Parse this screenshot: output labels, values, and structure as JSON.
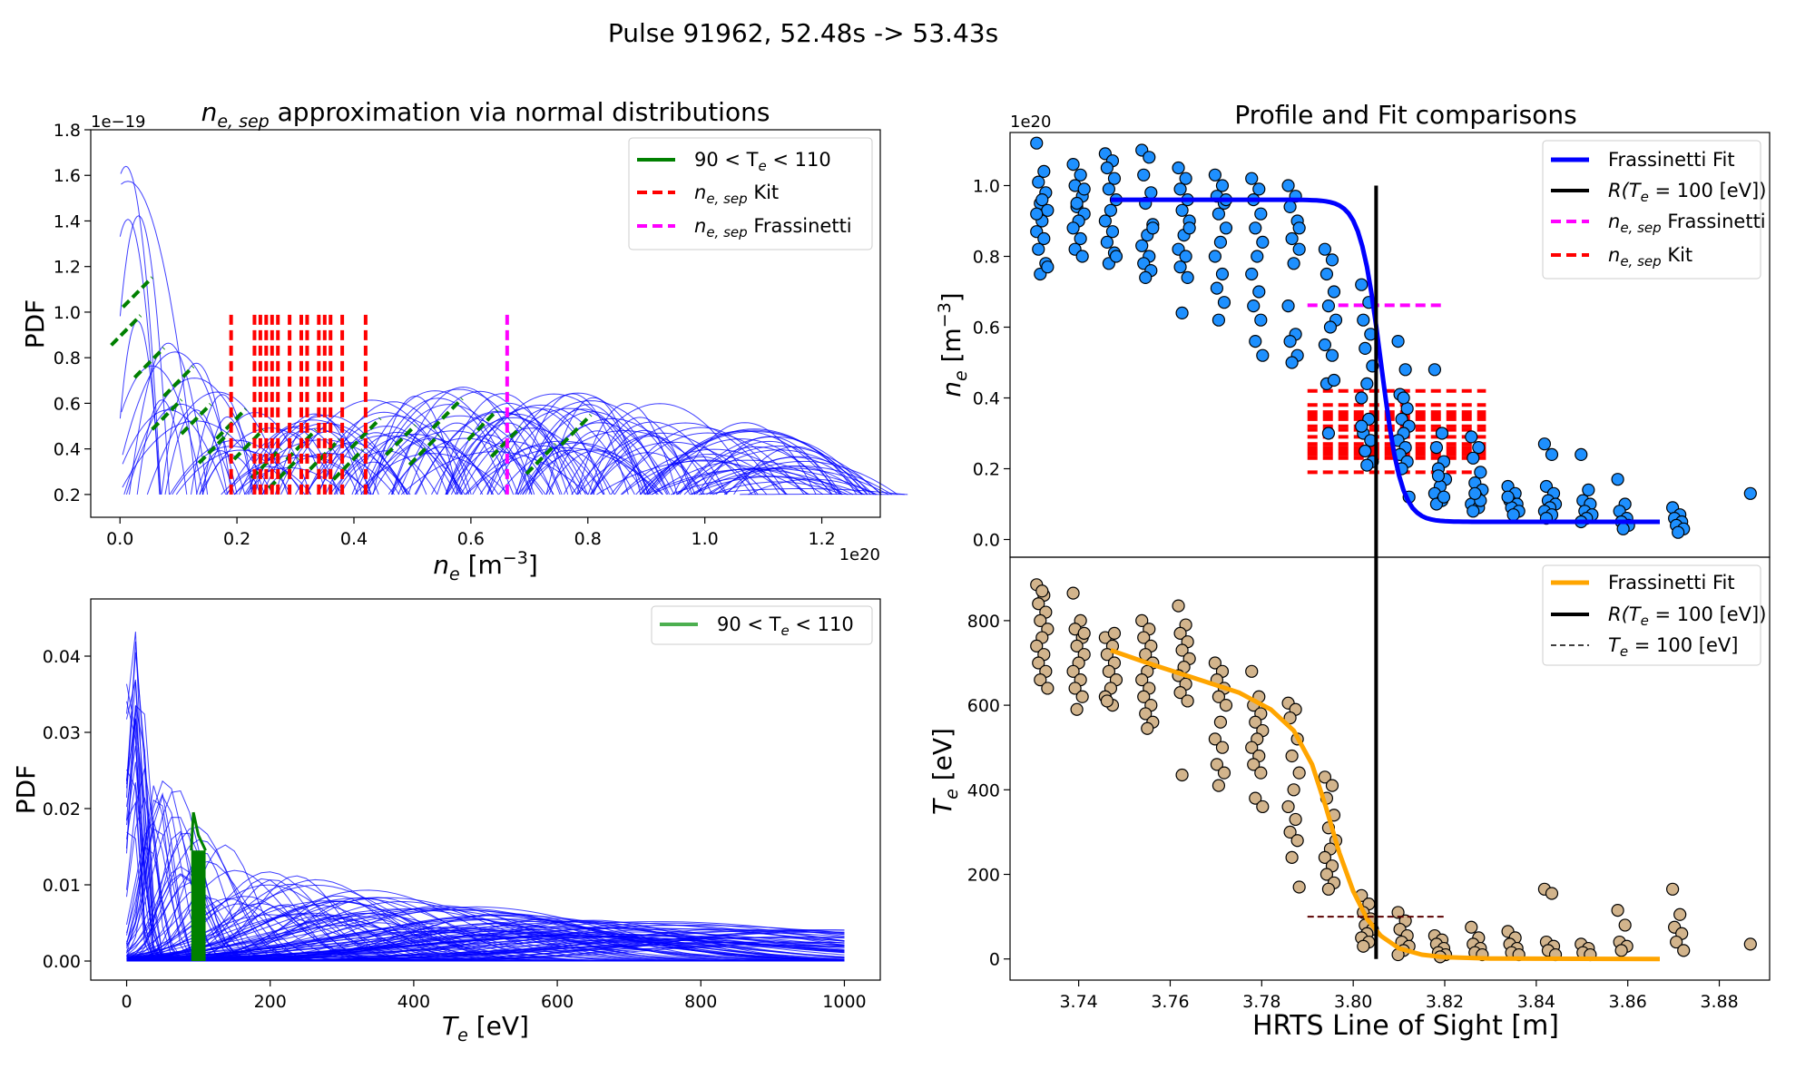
{
  "suptitle": "Pulse 91962, 52.48s -> 53.43s",
  "chart_data": [
    {
      "id": "ne_pdf",
      "type": "line",
      "title_prefix": "n",
      "title_sub": "e, sep",
      "title_suffix": " approximation via normal distributions",
      "xlabel_main": "n",
      "xlabel_sub": "e",
      "xlabel_unit": " [m",
      "xlabel_sup": "−3",
      "xlabel_close": "]",
      "ylabel": "PDF",
      "x_offset_text": "1e20",
      "y_offset_text": "1e−19",
      "xlim": [
        -0.05,
        1.3
      ],
      "ylim": [
        0.1,
        1.8
      ],
      "x_ticks": [
        0.0,
        0.2,
        0.4,
        0.6,
        0.8,
        1.0,
        1.2
      ],
      "x_tick_labels": [
        "0.0",
        "0.2",
        "0.4",
        "0.6",
        "0.8",
        "1.0",
        "1.2"
      ],
      "y_ticks": [
        0.2,
        0.4,
        0.6,
        0.8,
        1.0,
        1.2,
        1.4,
        1.6,
        1.8
      ],
      "y_tick_labels": [
        "0.2",
        "0.4",
        "0.6",
        "0.8",
        "1.0",
        "1.2",
        "1.4",
        "1.6",
        "1.8"
      ],
      "legend": [
        {
          "label": "90 < T",
          "sub": "e",
          "tail": " < 110",
          "color": "#008000",
          "style": "solid"
        },
        {
          "label": "n",
          "sub": "e, sep",
          "tail": " Kit",
          "color": "#ff0000",
          "style": "dashed"
        },
        {
          "label": "n",
          "sub": "e, sep",
          "tail": " Frassinetti",
          "color": "#ff00ff",
          "style": "dashed"
        }
      ],
      "curves_color": "#0000ff",
      "curve_count": 150,
      "curve_y_floor": 0.2,
      "curve_peak_envelope": [
        [
          0.015,
          1.7
        ],
        [
          0.03,
          1.45
        ],
        [
          0.06,
          1.05
        ],
        [
          0.1,
          0.9
        ],
        [
          0.15,
          0.7
        ],
        [
          0.25,
          0.55
        ],
        [
          0.4,
          0.6
        ],
        [
          0.6,
          0.72
        ],
        [
          0.7,
          0.68
        ],
        [
          0.8,
          0.65
        ],
        [
          0.9,
          0.62
        ],
        [
          1.0,
          0.58
        ],
        [
          1.1,
          0.5
        ],
        [
          1.22,
          0.32
        ]
      ],
      "green_segments_ne": [
        0.01,
        0.03,
        0.05,
        0.08,
        0.1,
        0.13,
        0.16,
        0.19,
        0.22,
        0.25,
        0.28,
        0.31,
        0.35,
        0.39,
        0.42,
        0.48,
        0.52,
        0.56,
        0.62,
        0.66,
        0.72,
        0.78
      ],
      "kit_vlines": [
        0.19,
        0.23,
        0.24,
        0.25,
        0.26,
        0.27,
        0.29,
        0.31,
        0.32,
        0.34,
        0.35,
        0.36,
        0.38,
        0.42
      ],
      "kit_range": [
        0.2,
        1.0
      ],
      "frassinetti_vline": 0.662,
      "frassinetti_range": [
        0.2,
        1.0
      ]
    },
    {
      "id": "te_pdf",
      "type": "line",
      "xlabel_main": "T",
      "xlabel_sub": "e",
      "xlabel_unit": " [eV]",
      "ylabel": "PDF",
      "xlim": [
        -50,
        1050
      ],
      "ylim": [
        -0.0025,
        0.0475
      ],
      "x_ticks": [
        0,
        200,
        400,
        600,
        800,
        1000
      ],
      "x_tick_labels": [
        "0",
        "200",
        "400",
        "600",
        "800",
        "1000"
      ],
      "y_ticks": [
        0.0,
        0.01,
        0.02,
        0.03,
        0.04
      ],
      "y_tick_labels": [
        "0.00",
        "0.01",
        "0.02",
        "0.03",
        "0.04"
      ],
      "legend": [
        {
          "label": "90 < T",
          "sub": "e",
          "tail": " < 110",
          "color": "#4caf50",
          "style": "solid"
        }
      ],
      "curves_color": "#0000ff",
      "curve_count": 150,
      "curve_peak_envelope": [
        [
          15,
          0.046
        ],
        [
          25,
          0.03
        ],
        [
          40,
          0.024
        ],
        [
          60,
          0.024
        ],
        [
          100,
          0.019
        ],
        [
          150,
          0.014
        ],
        [
          200,
          0.012
        ],
        [
          300,
          0.01
        ],
        [
          400,
          0.008
        ],
        [
          600,
          0.006
        ],
        [
          800,
          0.005
        ],
        [
          1000,
          0.004
        ]
      ],
      "green_band": [
        90,
        110
      ],
      "green_peak": 0.0195
    },
    {
      "id": "ne_profile",
      "type": "scatter",
      "title": "Profile and Fit comparisons",
      "ylabel_main": "n",
      "ylabel_sub": "e",
      "ylabel_unit": " [m",
      "ylabel_sup": "−3",
      "ylabel_close": "]",
      "y_offset_text": "1e20",
      "xlim": [
        3.725,
        3.891
      ],
      "ylim": [
        -0.05,
        1.15
      ],
      "y_ticks": [
        0.0,
        0.2,
        0.4,
        0.6,
        0.8,
        1.0
      ],
      "y_tick_labels": [
        "0.0",
        "0.2",
        "0.4",
        "0.6",
        "0.8",
        "1.0"
      ],
      "legend": [
        {
          "label": "Frassinetti Fit",
          "color": "#0000ff",
          "style": "thick"
        },
        {
          "label": "R(T",
          "sub": "e",
          "tail": " = 100 [eV])",
          "italic_head": true,
          "color": "#000000",
          "style": "solid"
        },
        {
          "label": "n",
          "sub": "e, sep",
          "tail": " Frassinetti",
          "color": "#ff00ff",
          "style": "dashed"
        },
        {
          "label": "n",
          "sub": "e, sep",
          "tail": " Kit",
          "color": "#ff0000",
          "style": "dashed"
        }
      ],
      "point_color": "#1e90ff",
      "fit_color": "#0000ff",
      "fit": {
        "x_start": 3.747,
        "x_end": 3.867,
        "ped": 0.96,
        "base": 0.05,
        "r0": 3.806,
        "w": 0.0045
      },
      "points_columns": [
        {
          "x": 3.732,
          "y": [
            1.12,
            1.04,
            1.01,
            0.98,
            0.95,
            0.93,
            0.9,
            0.87,
            0.85,
            0.82,
            0.78,
            0.75,
            0.77,
            0.96,
            0.92
          ]
        },
        {
          "x": 3.74,
          "y": [
            1.06,
            1.03,
            1.0,
            0.97,
            0.94,
            0.92,
            0.9,
            0.88,
            0.85,
            0.82,
            0.8,
            0.95,
            0.99
          ]
        },
        {
          "x": 3.747,
          "y": [
            1.09,
            1.07,
            1.05,
            1.02,
            0.99,
            0.96,
            0.93,
            0.9,
            0.87,
            0.84,
            0.81,
            0.78,
            0.8
          ]
        },
        {
          "x": 3.755,
          "y": [
            1.1,
            1.08,
            1.03,
            0.98,
            0.95,
            0.89,
            0.86,
            0.83,
            0.8,
            0.78,
            0.76,
            0.74,
            0.88
          ]
        },
        {
          "x": 3.763,
          "y": [
            1.05,
            1.02,
            0.99,
            0.96,
            0.93,
            0.9,
            0.86,
            0.82,
            0.8,
            0.77,
            0.74,
            0.64,
            0.88
          ]
        },
        {
          "x": 3.771,
          "y": [
            1.03,
            1.0,
            0.97,
            0.95,
            0.92,
            0.88,
            0.84,
            0.8,
            0.75,
            0.71,
            0.67,
            0.62,
            0.96
          ]
        },
        {
          "x": 3.779,
          "y": [
            1.02,
            0.99,
            0.96,
            0.92,
            0.88,
            0.84,
            0.8,
            0.75,
            0.7,
            0.66,
            0.62,
            0.56,
            0.52
          ]
        },
        {
          "x": 3.787,
          "y": [
            1.0,
            0.97,
            0.94,
            0.9,
            0.85,
            0.82,
            0.78,
            0.66,
            0.58,
            0.56,
            0.52,
            0.5,
            0.88
          ]
        },
        {
          "x": 3.795,
          "y": [
            0.82,
            0.79,
            0.75,
            0.7,
            0.66,
            0.62,
            0.6,
            0.55,
            0.52,
            0.44,
            0.45,
            0.3
          ]
        },
        {
          "x": 3.803,
          "y": [
            0.72,
            0.67,
            0.62,
            0.58,
            0.54,
            0.49,
            0.44,
            0.4,
            0.34,
            0.3,
            0.28,
            0.25,
            0.22,
            0.21,
            0.32
          ]
        },
        {
          "x": 3.811,
          "y": [
            0.56,
            0.48,
            0.41,
            0.37,
            0.34,
            0.32,
            0.3,
            0.28,
            0.26,
            0.24,
            0.22,
            0.2,
            0.12,
            0.4
          ]
        },
        {
          "x": 3.819,
          "y": [
            0.48,
            0.3,
            0.26,
            0.22,
            0.2,
            0.17,
            0.15,
            0.13,
            0.11,
            0.1,
            0.12,
            0.18
          ]
        },
        {
          "x": 3.827,
          "y": [
            0.29,
            0.26,
            0.23,
            0.19,
            0.16,
            0.14,
            0.12,
            0.1,
            0.09,
            0.08,
            0.11,
            0.13
          ]
        },
        {
          "x": 3.835,
          "y": [
            0.15,
            0.13,
            0.11,
            0.1,
            0.09,
            0.08,
            0.07,
            0.12
          ]
        },
        {
          "x": 3.843,
          "y": [
            0.27,
            0.24,
            0.15,
            0.13,
            0.11,
            0.1,
            0.09,
            0.08,
            0.07,
            0.06
          ]
        },
        {
          "x": 3.851,
          "y": [
            0.24,
            0.14,
            0.11,
            0.1,
            0.08,
            0.07,
            0.06,
            0.05
          ]
        },
        {
          "x": 3.859,
          "y": [
            0.17,
            0.1,
            0.08,
            0.06,
            0.05,
            0.04,
            0.03
          ]
        },
        {
          "x": 3.871,
          "y": [
            0.09,
            0.07,
            0.06,
            0.05,
            0.04,
            0.03,
            0.02
          ]
        },
        {
          "x": 3.888,
          "y": [
            0.13
          ]
        }
      ],
      "r_te100": 3.805,
      "r_te100_range": [
        0.0,
        1.0
      ],
      "ne_sep_frassinetti": 0.662,
      "ne_sep_frassinetti_xrange": [
        3.79,
        3.82
      ],
      "kit_hlines": [
        0.19,
        0.23,
        0.24,
        0.25,
        0.26,
        0.27,
        0.29,
        0.31,
        0.32,
        0.34,
        0.35,
        0.36,
        0.38,
        0.42
      ],
      "kit_xrange": [
        3.79,
        3.829
      ]
    },
    {
      "id": "te_profile",
      "type": "scatter",
      "xlabel": "HRTS Line of Sight [m]",
      "ylabel_main": "T",
      "ylabel_sub": "e",
      "ylabel_unit": " [eV]",
      "xlim": [
        3.725,
        3.891
      ],
      "ylim": [
        -50,
        950
      ],
      "x_ticks": [
        3.74,
        3.76,
        3.78,
        3.8,
        3.82,
        3.84,
        3.86,
        3.88
      ],
      "x_tick_labels": [
        "3.74",
        "3.76",
        "3.78",
        "3.80",
        "3.82",
        "3.84",
        "3.86",
        "3.88"
      ],
      "y_ticks": [
        0,
        200,
        400,
        600,
        800
      ],
      "y_tick_labels": [
        "0",
        "200",
        "400",
        "600",
        "800"
      ],
      "legend": [
        {
          "label": "Frassinetti Fit",
          "color": "#ffa500",
          "style": "thick"
        },
        {
          "label": "R(T",
          "sub": "e",
          "tail": " = 100 [eV])",
          "italic_head": true,
          "color": "#000000",
          "style": "solid"
        },
        {
          "label": "T",
          "sub": "e",
          "tail": " = 100 [eV]",
          "italic_head": true,
          "color": "#000000",
          "style": "thindash"
        }
      ],
      "point_color": "#d2b48c",
      "fit_color": "#ffa500",
      "fit_points": [
        [
          3.747,
          730
        ],
        [
          3.755,
          700
        ],
        [
          3.765,
          665
        ],
        [
          3.775,
          630
        ],
        [
          3.782,
          590
        ],
        [
          3.787,
          540
        ],
        [
          3.791,
          460
        ],
        [
          3.794,
          360
        ],
        [
          3.797,
          250
        ],
        [
          3.8,
          160
        ],
        [
          3.803,
          95
        ],
        [
          3.806,
          55
        ],
        [
          3.81,
          25
        ],
        [
          3.815,
          10
        ],
        [
          3.82,
          4
        ],
        [
          3.83,
          1
        ],
        [
          3.867,
          0
        ]
      ],
      "points_columns": [
        {
          "x": 3.732,
          "y": [
            885,
            860,
            840,
            820,
            800,
            780,
            760,
            740,
            720,
            700,
            680,
            660,
            640,
            870
          ]
        },
        {
          "x": 3.74,
          "y": [
            865,
            800,
            780,
            760,
            740,
            720,
            700,
            680,
            660,
            640,
            620,
            590,
            770
          ]
        },
        {
          "x": 3.747,
          "y": [
            760,
            740,
            720,
            700,
            680,
            660,
            640,
            620,
            600,
            610,
            770
          ]
        },
        {
          "x": 3.755,
          "y": [
            800,
            780,
            760,
            740,
            720,
            700,
            680,
            660,
            640,
            620,
            600,
            580,
            560,
            545
          ]
        },
        {
          "x": 3.763,
          "y": [
            835,
            790,
            770,
            750,
            730,
            710,
            690,
            670,
            650,
            630,
            610,
            435
          ]
        },
        {
          "x": 3.771,
          "y": [
            700,
            680,
            660,
            640,
            620,
            600,
            560,
            520,
            500,
            460,
            440,
            410
          ]
        },
        {
          "x": 3.779,
          "y": [
            680,
            620,
            600,
            580,
            560,
            540,
            520,
            500,
            480,
            460,
            440,
            380,
            360
          ]
        },
        {
          "x": 3.787,
          "y": [
            605,
            590,
            570,
            520,
            480,
            440,
            400,
            360,
            330,
            300,
            280,
            240,
            170
          ]
        },
        {
          "x": 3.795,
          "y": [
            430,
            410,
            380,
            340,
            310,
            280,
            260,
            240,
            220,
            200,
            180,
            165
          ]
        },
        {
          "x": 3.803,
          "y": [
            150,
            130,
            110,
            95,
            80,
            70,
            60,
            50,
            40,
            30
          ]
        },
        {
          "x": 3.811,
          "y": [
            110,
            90,
            70,
            55,
            40,
            30,
            20,
            10
          ]
        },
        {
          "x": 3.819,
          "y": [
            55,
            45,
            35,
            25,
            15,
            10,
            5
          ]
        },
        {
          "x": 3.827,
          "y": [
            75,
            50,
            35,
            25,
            15,
            10
          ]
        },
        {
          "x": 3.835,
          "y": [
            65,
            50,
            35,
            25,
            15,
            10
          ]
        },
        {
          "x": 3.843,
          "y": [
            165,
            155,
            40,
            30,
            20,
            10
          ]
        },
        {
          "x": 3.851,
          "y": [
            35,
            25,
            15,
            10
          ]
        },
        {
          "x": 3.859,
          "y": [
            115,
            80,
            40,
            30,
            20
          ]
        },
        {
          "x": 3.871,
          "y": [
            165,
            105,
            75,
            60,
            40,
            20
          ]
        },
        {
          "x": 3.888,
          "y": [
            35
          ]
        }
      ],
      "r_te100": 3.805,
      "te100_xrange": [
        3.79,
        3.82
      ],
      "te100_value": 100
    }
  ]
}
